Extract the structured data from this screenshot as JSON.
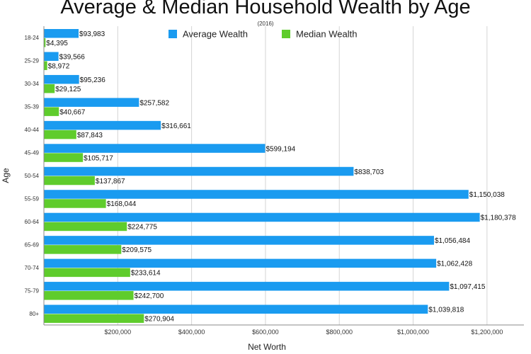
{
  "chart_data": {
    "type": "bar",
    "orientation": "horizontal",
    "title": "Average & Median Household Wealth by Age",
    "subtitle": "(2016)",
    "xlabel": "Net Worth",
    "ylabel": "Age",
    "xlim": [
      0,
      1300000
    ],
    "x_ticks": [
      {
        "value": 200000,
        "label": "$200,000"
      },
      {
        "value": 400000,
        "label": "$400,000"
      },
      {
        "value": 600000,
        "label": "$600,000"
      },
      {
        "value": 800000,
        "label": "$800,000"
      },
      {
        "value": 1000000,
        "label": "$1,000,000"
      },
      {
        "value": 1200000,
        "label": "$1,200,000"
      }
    ],
    "grid": "vertical",
    "legend_position": "top",
    "categories": [
      "18-24",
      "25-29",
      "30-34",
      "35-39",
      "40-44",
      "45-49",
      "50-54",
      "55-59",
      "60-64",
      "65-69",
      "70-74",
      "75-79",
      "80+"
    ],
    "series": [
      {
        "name": "Average Wealth",
        "color": "#1a9bf0",
        "values": [
          93983,
          39566,
          95236,
          257582,
          316661,
          599194,
          838703,
          1150038,
          1180378,
          1056484,
          1062428,
          1097415,
          1039818
        ],
        "labels": [
          "$93,983",
          "$39,566",
          "$95,236",
          "$257,582",
          "$316,661",
          "$599,194",
          "$838,703",
          "$1,150,038",
          "$1,180,378",
          "$1,056,484",
          "$1,062,428",
          "$1,097,415",
          "$1,039,818"
        ]
      },
      {
        "name": "Median Wealth",
        "color": "#5fcc2c",
        "values": [
          4395,
          8972,
          29125,
          40667,
          87843,
          105717,
          137867,
          168044,
          224775,
          209575,
          233614,
          242700,
          270904
        ],
        "labels": [
          "$4,395",
          "$8,972",
          "$29,125",
          "$40,667",
          "$87,843",
          "$105,717",
          "$137,867",
          "$168,044",
          "$224,775",
          "$209,575",
          "$233,614",
          "$242,700",
          "$270,904"
        ]
      }
    ]
  }
}
